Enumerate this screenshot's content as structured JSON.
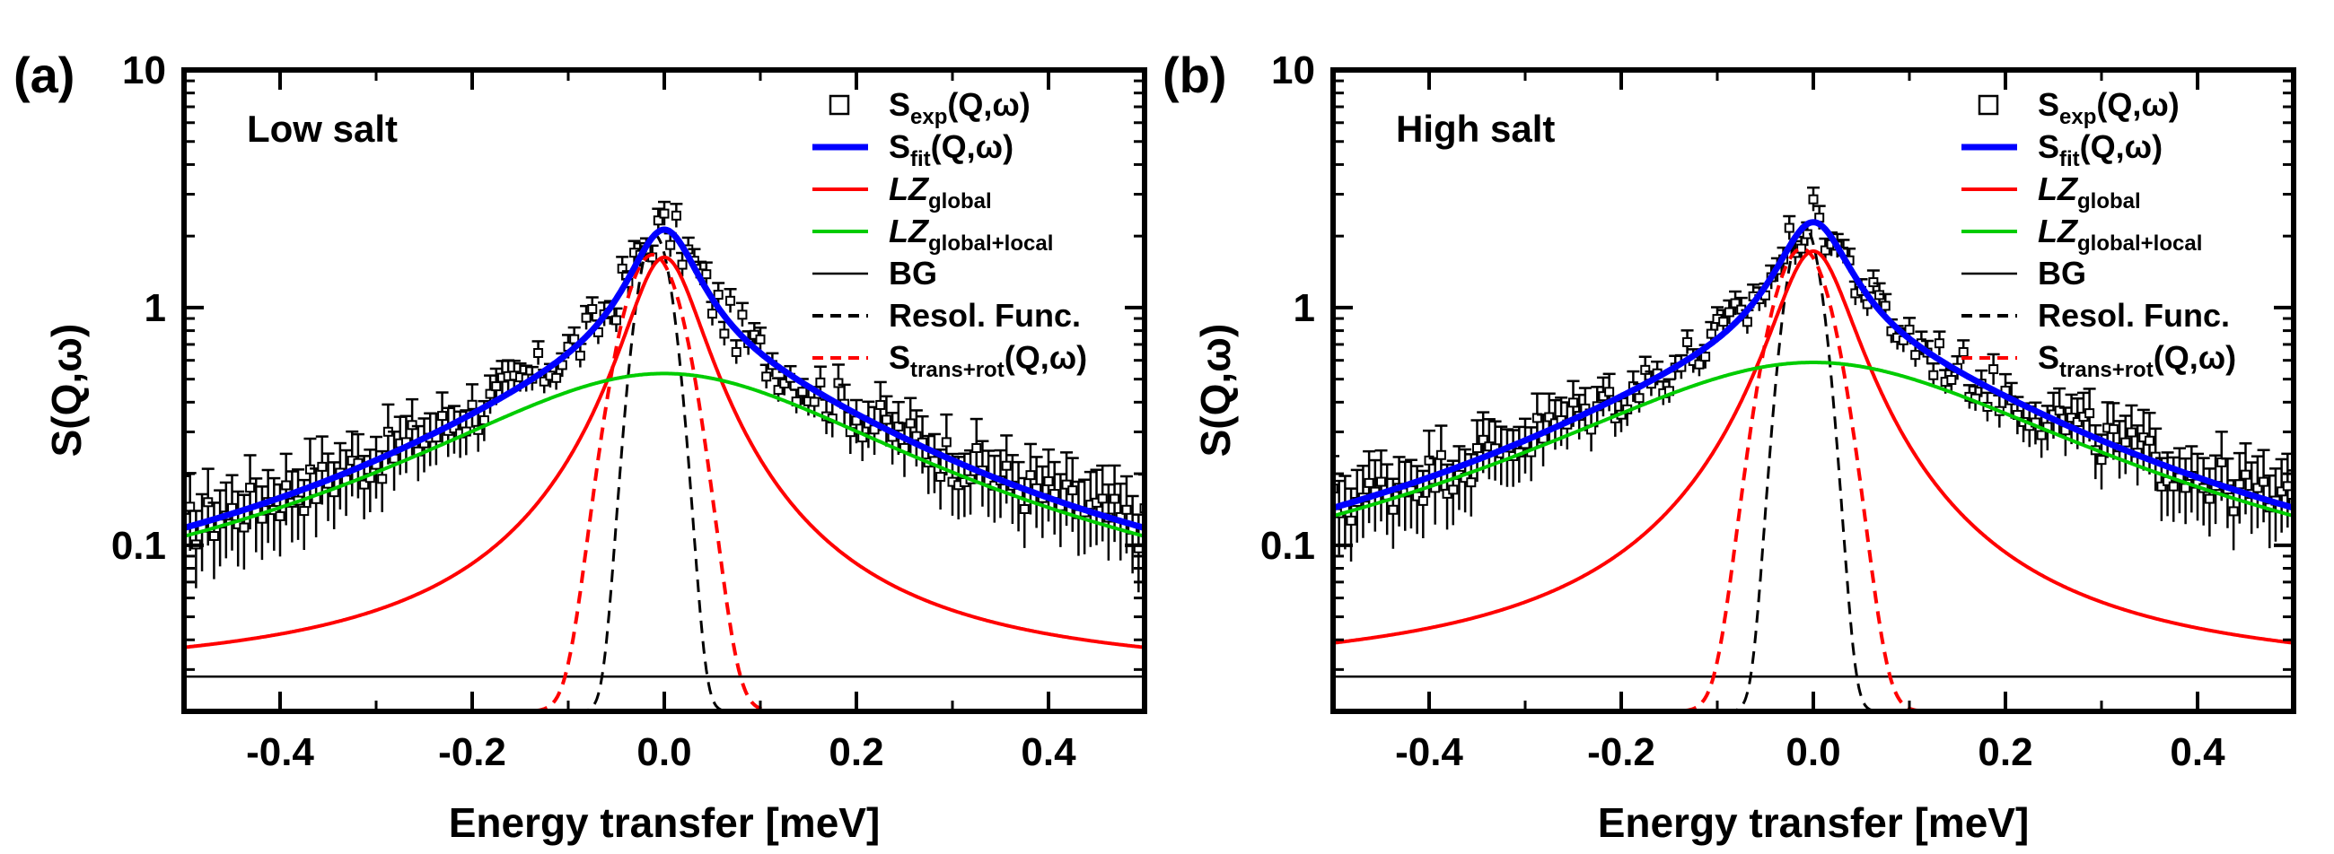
{
  "chart_data": [
    {
      "type": "line",
      "panel_label": "(a)",
      "annotation": "Low salt",
      "xlabel": "Energy transfer [meV]",
      "ylabel": "S(Q,ω)",
      "xlim": [
        -0.5,
        0.5
      ],
      "ylim": [
        0.02,
        10
      ],
      "y_scale": "log",
      "x_ticks": [
        "-0.4",
        "-0.2",
        "0.0",
        "0.2",
        "0.4"
      ],
      "y_ticks": [
        "0.1",
        "1",
        "10"
      ],
      "legend_position": "top-right",
      "background_level": 0.028,
      "series": [
        {
          "name": "S_exp(Q,ω)",
          "style": "open squares with error bars",
          "color": "#000000",
          "model": {
            "A": 1.6,
            "G": 0.038,
            "B": 0.5,
            "H": 0.22,
            "bg": 0.028
          }
        },
        {
          "name": "S_fit(Q,ω)",
          "style": "solid",
          "color": "#0000ff",
          "model": {
            "A": 1.6,
            "G": 0.038,
            "B": 0.5,
            "H": 0.22,
            "bg": 0.028
          }
        },
        {
          "name": "LZ_global",
          "style": "solid",
          "color": "#ff0000",
          "model": {
            "A": 1.6,
            "G": 0.038,
            "bg": 0.028
          }
        },
        {
          "name": "LZ_global+local",
          "style": "solid",
          "color": "#00cc00",
          "model": {
            "B": 0.5,
            "H": 0.22,
            "bg": 0.028
          }
        },
        {
          "name": "BG",
          "style": "solid",
          "color": "#000000",
          "model": {
            "bg": 0.028
          }
        },
        {
          "name": "Resol. Func.",
          "style": "dashed",
          "color": "#000000",
          "model": {
            "peak": 2.0,
            "center": -0.01,
            "sigma": 0.0165,
            "floor": 0.02
          }
        },
        {
          "name": "S_trans+rot(Q,ω)",
          "style": "dashed",
          "color": "#ff0000",
          "model": {
            "peak": 1.65,
            "center": -0.012,
            "sigma": 0.028,
            "floor": 0.02
          }
        }
      ]
    },
    {
      "type": "line",
      "panel_label": "(b)",
      "annotation": "High salt",
      "xlabel": "Energy transfer [meV]",
      "ylabel": "S(Q,ω)",
      "xlim": [
        -0.5,
        0.5
      ],
      "ylim": [
        0.02,
        10
      ],
      "y_scale": "log",
      "x_ticks": [
        "-0.4",
        "-0.2",
        "0.0",
        "0.2",
        "0.4"
      ],
      "y_ticks": [
        "0.1",
        "1",
        "10"
      ],
      "legend_position": "top-right",
      "background_level": 0.028,
      "series": [
        {
          "name": "S_exp(Q,ω)",
          "style": "open squares with error bars",
          "color": "#000000",
          "model": {
            "A": 1.7,
            "G": 0.04,
            "B": 0.56,
            "H": 0.24,
            "bg": 0.028
          }
        },
        {
          "name": "S_fit(Q,ω)",
          "style": "solid",
          "color": "#0000ff",
          "model": {
            "A": 1.7,
            "G": 0.04,
            "B": 0.56,
            "H": 0.24,
            "bg": 0.028
          }
        },
        {
          "name": "LZ_global",
          "style": "solid",
          "color": "#ff0000",
          "model": {
            "A": 1.7,
            "G": 0.04,
            "bg": 0.028
          }
        },
        {
          "name": "LZ_global+local",
          "style": "solid",
          "color": "#00cc00",
          "model": {
            "B": 0.56,
            "H": 0.24,
            "bg": 0.028
          }
        },
        {
          "name": "BG",
          "style": "solid",
          "color": "#000000",
          "model": {
            "bg": 0.028
          }
        },
        {
          "name": "Resol. Func.",
          "style": "dashed",
          "color": "#000000",
          "model": {
            "peak": 2.2,
            "center": -0.01,
            "sigma": 0.0165,
            "floor": 0.02
          }
        },
        {
          "name": "S_trans+rot(Q,ω)",
          "style": "dashed",
          "color": "#ff0000",
          "model": {
            "peak": 1.75,
            "center": -0.012,
            "sigma": 0.028,
            "floor": 0.02
          }
        }
      ]
    }
  ],
  "legend": [
    {
      "main": "S",
      "sub": "exp",
      "tail": "(Q,ω)"
    },
    {
      "main": "S",
      "sub": "fit",
      "tail": "(Q,ω)"
    },
    {
      "main": "LZ",
      "sub": "global",
      "tail": ""
    },
    {
      "main": "LZ",
      "sub": "global+local",
      "tail": ""
    },
    {
      "main": "BG",
      "sub": "",
      "tail": ""
    },
    {
      "main": "Resol. Func.",
      "sub": "",
      "tail": ""
    },
    {
      "main": "S",
      "sub": "trans+rot",
      "tail": "(Q,ω)"
    }
  ]
}
